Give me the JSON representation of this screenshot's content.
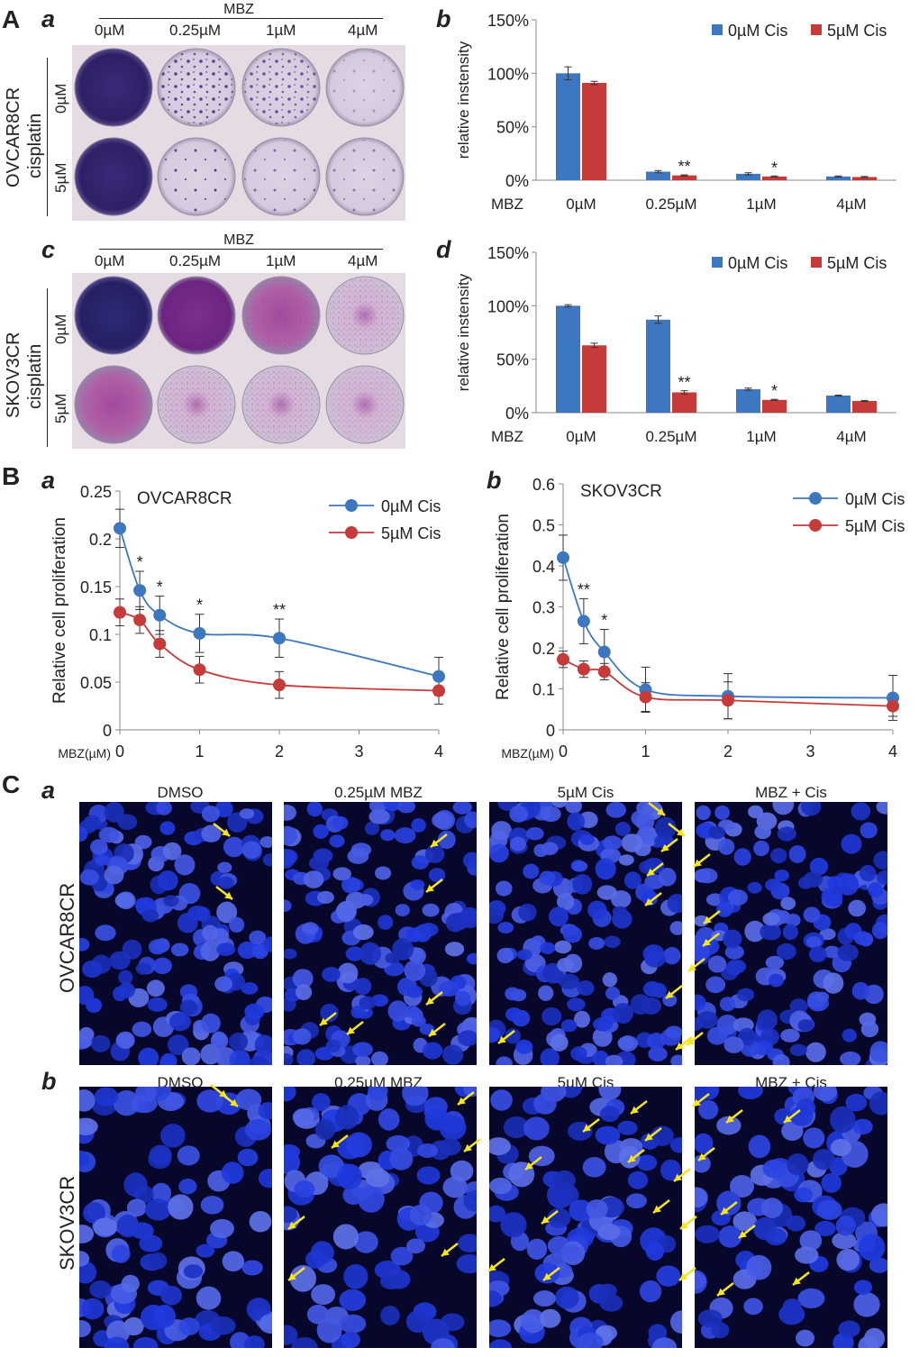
{
  "panel_labels": {
    "A": "A",
    "B": "B",
    "C": "C",
    "a": "a",
    "b": "b",
    "c": "c",
    "d": "d"
  },
  "plates": {
    "top": {
      "header": "MBZ",
      "columns": [
        "0µM",
        "0.25µM",
        "1µM",
        "4µM"
      ],
      "row_labels": [
        "0µM",
        "5µM"
      ],
      "side_title": "OVCAR8CR\ncisplatin",
      "side_line1": "OVCAR8CR",
      "side_line2": "cisplatin"
    },
    "bottom": {
      "header": "MBZ",
      "columns": [
        "0µM",
        "0.25µM",
        "1µM",
        "4µM"
      ],
      "row_labels": [
        "0µM",
        "5µM"
      ],
      "side_line1": "SKOV3CR",
      "side_line2": "cisplatin"
    }
  },
  "colors": {
    "blue": "#3c77c0",
    "red": "#c63b3a",
    "yellow": "#f5e51a",
    "plate_bg": "#e8dde4"
  },
  "chart_data": [
    {
      "type": "bar",
      "categories": [
        "0µM",
        "0.25µM",
        "1µM",
        "4µM"
      ],
      "xlabel": "MBZ",
      "ylabel": "relative instensity",
      "ylim": [
        0,
        1.5
      ],
      "ytick_labels": [
        "0%",
        "50%",
        "100%",
        "150%"
      ],
      "yticks": [
        0,
        0.5,
        1.0,
        1.5
      ],
      "legend_position": "top-right",
      "series": [
        {
          "name": "0µM Cis",
          "values": [
            1.0,
            0.08,
            0.06,
            0.035
          ],
          "errors": [
            0.06,
            0.01,
            0.01,
            0.005
          ]
        },
        {
          "name": "5µM Cis",
          "values": [
            0.91,
            0.045,
            0.035,
            0.03
          ],
          "errors": [
            0.015,
            0.005,
            0.005,
            0.005
          ]
        }
      ],
      "annotations": [
        {
          "category": "0.25µM",
          "text": "**"
        },
        {
          "category": "1µM",
          "text": "*"
        }
      ]
    },
    {
      "type": "bar",
      "categories": [
        "0µM",
        "0.25µM",
        "1µM",
        "4µM"
      ],
      "xlabel": "MBZ",
      "ylabel": "relative instensity",
      "ylim": [
        0,
        1.5
      ],
      "ytick_labels": [
        "0%",
        "50%",
        "100%",
        "150%"
      ],
      "yticks": [
        0,
        0.5,
        1.0,
        1.5
      ],
      "legend_position": "top-right",
      "series": [
        {
          "name": "0µM Cis",
          "values": [
            1.0,
            0.87,
            0.22,
            0.16
          ],
          "errors": [
            0.01,
            0.035,
            0.01,
            0.005
          ]
        },
        {
          "name": "5µM Cis",
          "values": [
            0.63,
            0.19,
            0.12,
            0.11
          ],
          "errors": [
            0.02,
            0.015,
            0.005,
            0.005
          ]
        }
      ],
      "annotations": [
        {
          "category": "0.25µM",
          "text": "**"
        },
        {
          "category": "1µM",
          "text": "*"
        }
      ]
    },
    {
      "type": "line",
      "title": "OVCAR8CR",
      "xlabel": "MBZ(µM)",
      "ylabel": "Relative cell proliferation",
      "x": [
        0,
        0.25,
        0.5,
        1,
        2,
        4
      ],
      "xticks": [
        0,
        1,
        2,
        3,
        4
      ],
      "ylim": [
        0,
        0.25
      ],
      "yticks": [
        0,
        0.05,
        0.1,
        0.15,
        0.2,
        0.25
      ],
      "ytick_labels": [
        "0",
        "0.05",
        "0.1",
        "0.15",
        "0.2",
        "0.25"
      ],
      "legend_position": "top-right",
      "series": [
        {
          "name": "0µM Cis",
          "values": [
            0.211,
            0.146,
            0.12,
            0.101,
            0.096,
            0.056
          ],
          "errors": [
            0.02,
            0.02,
            0.02,
            0.02,
            0.02,
            0.02
          ]
        },
        {
          "name": "5µM Cis",
          "values": [
            0.123,
            0.115,
            0.09,
            0.063,
            0.047,
            0.041
          ],
          "errors": [
            0.014,
            0.014,
            0.014,
            0.014,
            0.014,
            0.014
          ]
        }
      ],
      "annotations": [
        {
          "x": 0.25,
          "text": "*"
        },
        {
          "x": 0.5,
          "text": "*"
        },
        {
          "x": 1,
          "text": "*"
        },
        {
          "x": 2,
          "text": "**"
        }
      ]
    },
    {
      "type": "line",
      "title": "SKOV3CR",
      "xlabel": "MBZ(µM)",
      "ylabel": "Relative cell proliferation",
      "x": [
        0,
        0.25,
        0.5,
        1,
        2,
        4
      ],
      "xticks": [
        0,
        1,
        2,
        3,
        4
      ],
      "ylim": [
        0,
        0.6
      ],
      "yticks": [
        0,
        0.1,
        0.2,
        0.3,
        0.4,
        0.5,
        0.6
      ],
      "ytick_labels": [
        "0",
        "0.1",
        "0.2",
        "0.3",
        "0.4",
        "0.5",
        "0.6"
      ],
      "legend_position": "top-right",
      "series": [
        {
          "name": "0µM Cis",
          "values": [
            0.42,
            0.265,
            0.19,
            0.098,
            0.082,
            0.078
          ],
          "errors": [
            0.055,
            0.055,
            0.055,
            0.055,
            0.055,
            0.055
          ]
        },
        {
          "name": "5µM Cis",
          "values": [
            0.172,
            0.148,
            0.142,
            0.08,
            0.072,
            0.058
          ],
          "errors": [
            0.02,
            0.02,
            0.02,
            0.035,
            0.045,
            0.025
          ]
        }
      ],
      "annotations": [
        {
          "x": 0.25,
          "text": "**"
        },
        {
          "x": 0.5,
          "text": "*"
        }
      ]
    }
  ],
  "micrographs": {
    "column_titles": [
      "DMSO",
      "0.25µM MBZ",
      "5µM Cis",
      "MBZ + Cis"
    ],
    "row_labels": [
      "OVCAR8CR",
      "SKOV3CR"
    ]
  }
}
